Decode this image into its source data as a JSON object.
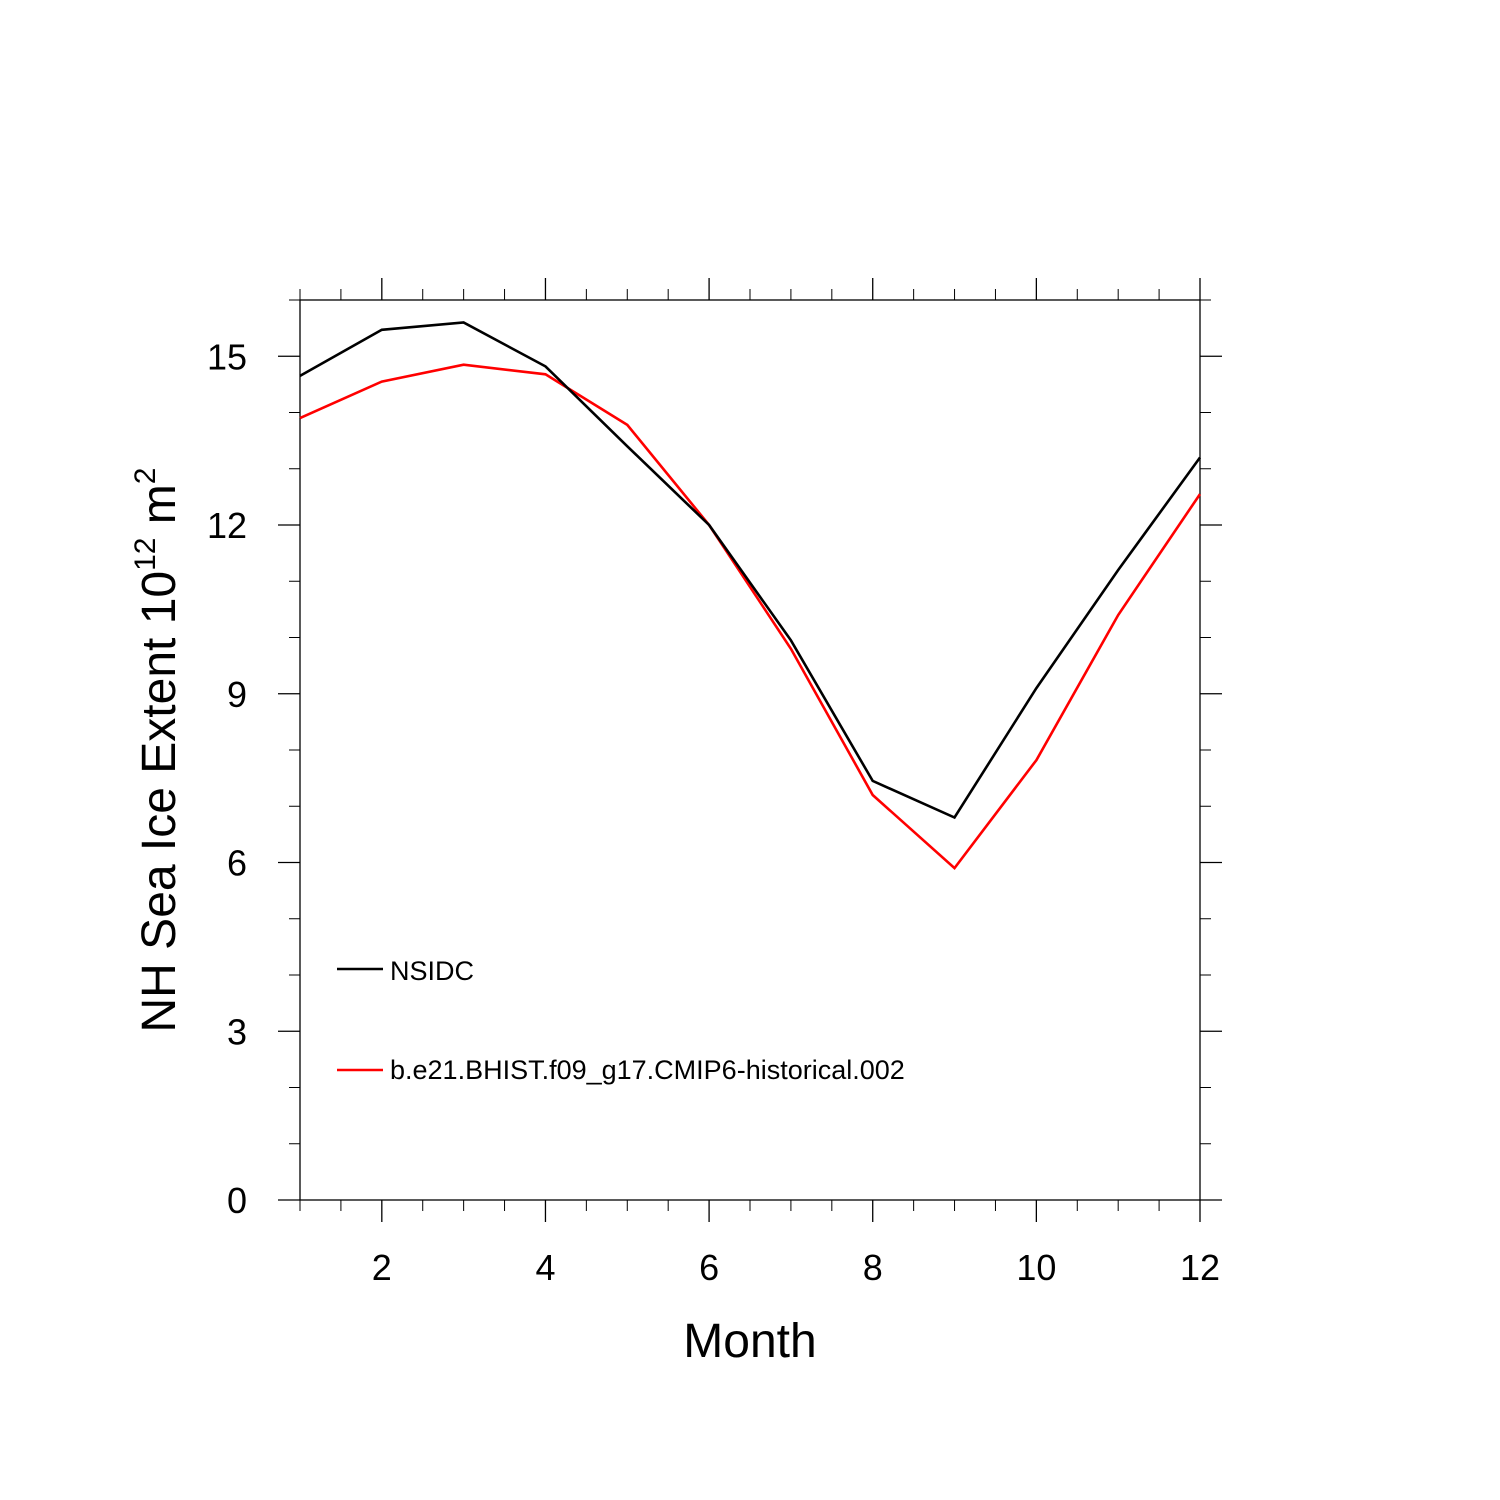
{
  "chart_data": {
    "type": "line",
    "title": "",
    "xlabel": "Month",
    "ylabel_text": "NH Sea Ice Extent 10",
    "ylabel_exp": "12",
    "ylabel_unit": " m",
    "ylabel_unit_exp": "2",
    "xlim": [
      1,
      12
    ],
    "ylim": [
      0,
      16
    ],
    "xticks": [
      2,
      4,
      6,
      8,
      10,
      12
    ],
    "xtick_labels": [
      "2",
      "4",
      "6",
      "8",
      "10",
      "12"
    ],
    "yticks": [
      0,
      3,
      6,
      9,
      12,
      15
    ],
    "ytick_labels": [
      "0",
      "3",
      "6",
      "9",
      "12",
      "15"
    ],
    "x": [
      1,
      2,
      3,
      4,
      5,
      6,
      7,
      8,
      9,
      10,
      11,
      12
    ],
    "series": [
      {
        "name": "NSIDC",
        "color": "#000000",
        "values": [
          14.65,
          15.47,
          15.6,
          14.82,
          13.4,
          12.0,
          9.95,
          7.45,
          6.8,
          9.1,
          11.2,
          13.2
        ]
      },
      {
        "name": "b.e21.BHIST.f09_g17.CMIP6-historical.002",
        "color": "#ff0000",
        "values": [
          13.9,
          14.55,
          14.85,
          14.68,
          13.78,
          12.0,
          9.8,
          7.2,
          5.9,
          7.82,
          10.4,
          12.55
        ]
      }
    ],
    "legend_position": "lower-left"
  }
}
